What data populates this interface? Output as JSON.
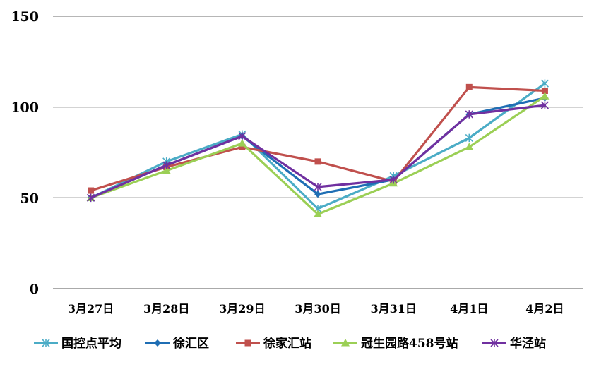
{
  "chart_data": {
    "type": "line",
    "title": "",
    "xlabel": "",
    "ylabel": "",
    "ylim": [
      0,
      150
    ],
    "yticks": [
      "0",
      "50",
      "100",
      "150"
    ],
    "grid": true,
    "legend_position": "bottom",
    "categories": [
      "3月27日",
      "3月28日",
      "3月29日",
      "3月30日",
      "3月31日",
      "4月1日",
      "4月2日"
    ],
    "series": [
      {
        "name": "国控点平均",
        "color": "#4bacc6",
        "marker": "star",
        "values": [
          50,
          70,
          85,
          44,
          62,
          83,
          113
        ]
      },
      {
        "name": "徐汇区",
        "color": "#1f6eb4",
        "marker": "diamond",
        "values": [
          50,
          68,
          84,
          52,
          60,
          96,
          105
        ]
      },
      {
        "name": "徐家汇站",
        "color": "#c0504d",
        "marker": "square",
        "values": [
          54,
          67,
          78,
          70,
          59,
          111,
          109
        ]
      },
      {
        "name": "冠生园路458号站",
        "color": "#9bcf55",
        "marker": "triangle",
        "values": [
          50,
          65,
          80,
          41,
          58,
          78,
          106
        ]
      },
      {
        "name": "华泾站",
        "color": "#7030a0",
        "marker": "star",
        "values": [
          50,
          68,
          84,
          56,
          60,
          96,
          101
        ]
      }
    ]
  }
}
